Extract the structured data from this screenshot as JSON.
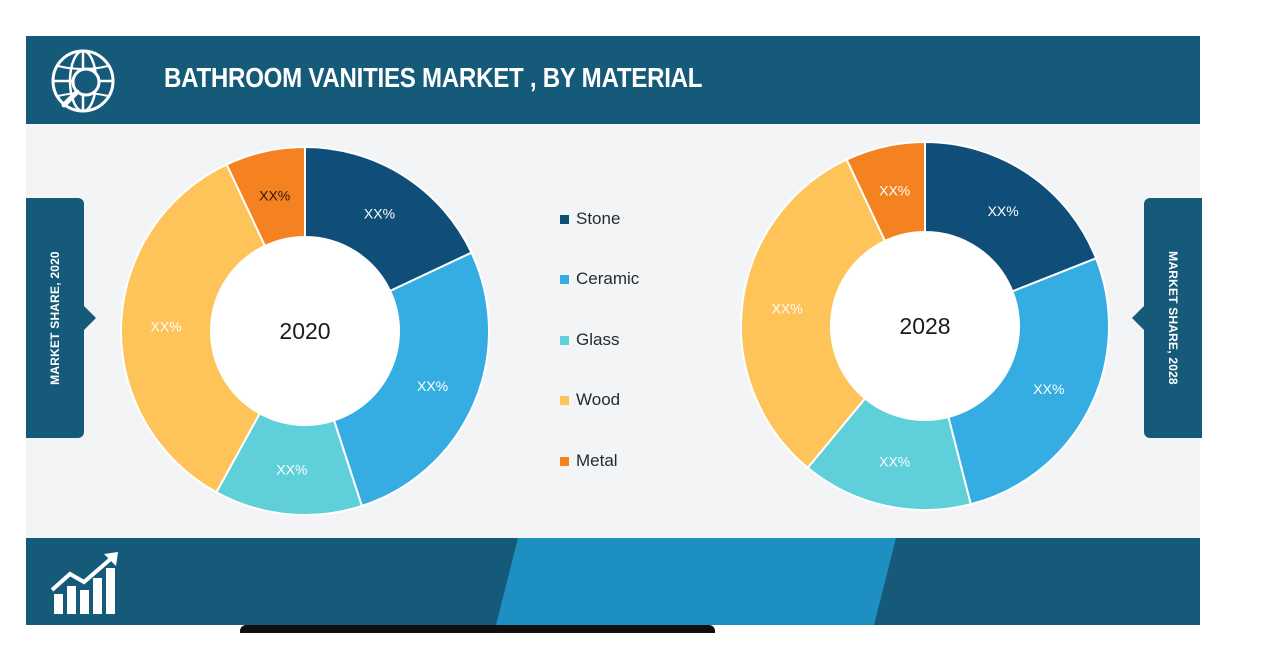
{
  "header": {
    "title": "BATHROOM VANITIES MARKET , BY MATERIAL",
    "icon": "globe-search-icon"
  },
  "footer": {
    "icon": "growth-chart-icon"
  },
  "side_tabs": {
    "left": "MARKET SHARE, 2020",
    "right": "MARKET SHARE, 2028"
  },
  "legend": [
    {
      "label": "Stone",
      "color": "#0f4e79"
    },
    {
      "label": "Ceramic",
      "color": "#35ade3"
    },
    {
      "label": "Glass",
      "color": "#5fcfda"
    },
    {
      "label": "Wood",
      "color": "#fec359"
    },
    {
      "label": "Metal",
      "color": "#f58220"
    }
  ],
  "chart_data": [
    {
      "type": "pie",
      "center_label": "2020",
      "categories": [
        "Stone",
        "Ceramic",
        "Glass",
        "Wood",
        "Metal"
      ],
      "values": [
        18,
        27,
        13,
        35,
        7
      ],
      "data_labels": [
        "XX%",
        "XX%",
        "XX%",
        "XX%",
        "XX%"
      ]
    },
    {
      "type": "pie",
      "center_label": "2028",
      "categories": [
        "Stone",
        "Ceramic",
        "Glass",
        "Wood",
        "Metal"
      ],
      "values": [
        19,
        27,
        15,
        32,
        7
      ],
      "data_labels": [
        "XX%",
        "XX%",
        "XX%",
        "XX%",
        "XX%"
      ]
    }
  ]
}
